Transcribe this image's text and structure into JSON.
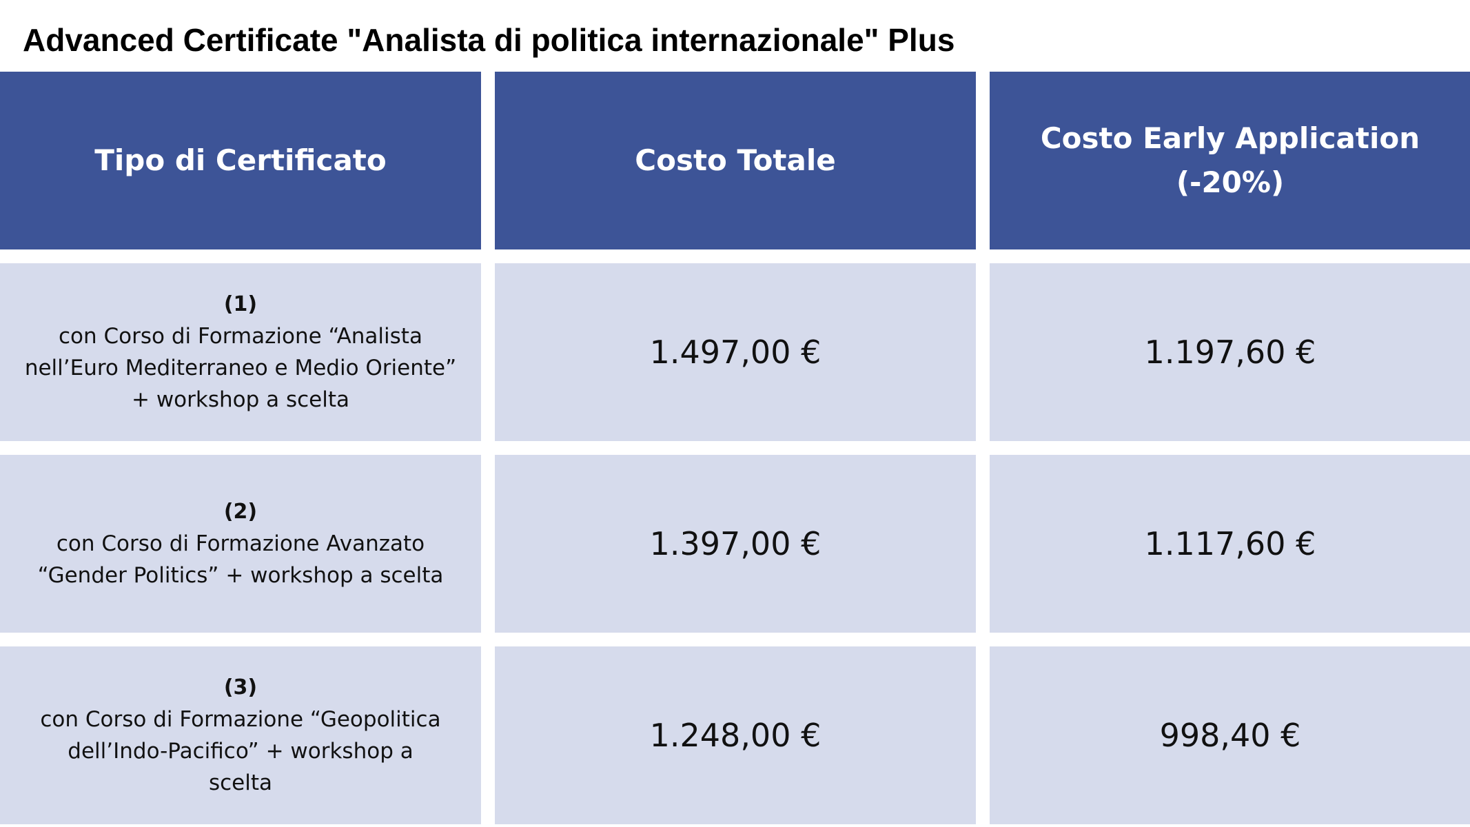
{
  "title": "Advanced Certificate \"Analista di politica internazionale\" Plus",
  "colors": {
    "header_bg": "#3d5497",
    "row_bg": "#d6dbec",
    "header_text": "#ffffff",
    "body_text": "#111111"
  },
  "table": {
    "headers": {
      "type": "Tipo di Certificato",
      "total": "Costo Totale",
      "early_line1": "Costo Early Application",
      "early_line2": "(-20%)"
    },
    "rows": [
      {
        "number": "(1)",
        "description": "con Corso di Formazione “Analista nell’Euro Mediterraneo e Medio Oriente” + workshop a scelta",
        "total": "1.497,00 €",
        "early": "1.197,60 €"
      },
      {
        "number": "(2)",
        "description": "con Corso di Formazione Avanzato “Gender Politics” + workshop a scelta",
        "total": "1.397,00 €",
        "early": "1.117,60 €"
      },
      {
        "number": "(3)",
        "description": "con Corso di Formazione “Geopolitica dell’Indo-Pacifico” + workshop a scelta",
        "total": "1.248,00 €",
        "early": "998,40 €"
      }
    ]
  }
}
